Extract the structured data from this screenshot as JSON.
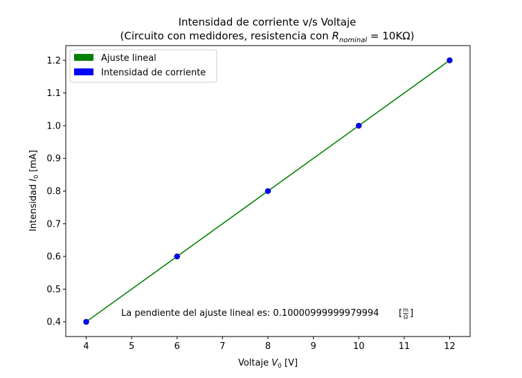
{
  "chart_data": {
    "type": "scatter",
    "title_line1": "Intensidad de corriente v/s Voltaje",
    "title_line2_prefix": "(Circuito con medidores, resistencia con ",
    "title_line2_math": "R",
    "title_line2_sub": "nominal",
    "title_line2_suffix": " = 10KΩ)",
    "xlabel_prefix": "Voltaje ",
    "xlabel_var": "V",
    "xlabel_sub": "0",
    "xlabel_unit": " [V]",
    "ylabel_prefix": "Intensidad ",
    "ylabel_var": "I",
    "ylabel_sub": "0",
    "ylabel_unit": " [mA]",
    "xlim": [
      3.55,
      12.45
    ],
    "ylim": [
      0.355,
      1.245
    ],
    "xticks": [
      4,
      5,
      6,
      7,
      8,
      9,
      10,
      11,
      12
    ],
    "yticks": [
      0.4,
      0.5,
      0.6,
      0.7,
      0.8,
      0.9,
      1.0,
      1.1,
      1.2
    ],
    "ytick_labels": [
      "0.4",
      "0.5",
      "0.6",
      "0.7",
      "0.8",
      "0.9",
      "1.0",
      "1.1",
      "1.2"
    ],
    "grid": false,
    "legend_position": "top-left",
    "series": [
      {
        "name": "Ajuste lineal",
        "kind": "line",
        "color": "#008000",
        "x": [
          4,
          6,
          8,
          10,
          12
        ],
        "y": [
          0.4,
          0.6,
          0.8,
          1.0,
          1.2
        ]
      },
      {
        "name": "Intensidad de corriente",
        "kind": "scatter",
        "color": "#0000ff",
        "x": [
          4,
          6,
          8,
          10,
          12
        ],
        "y": [
          0.4,
          0.6,
          0.8,
          1.0,
          1.2
        ]
      }
    ],
    "annotation_text": "La pendiente del ajuste lineal es: 0.10000999999979994",
    "annotation_unit_num": "m",
    "annotation_unit_den": "Ω"
  }
}
